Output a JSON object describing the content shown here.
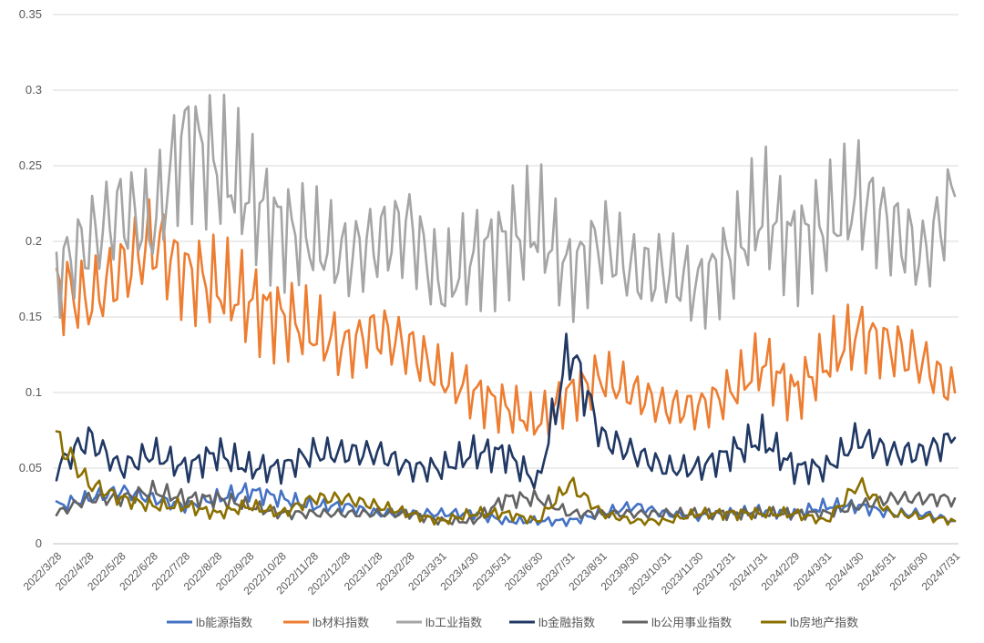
{
  "chart_data": {
    "type": "line",
    "title": "",
    "xlabel": "",
    "ylabel": "",
    "ylim": [
      0,
      0.35
    ],
    "yticks": [
      0,
      0.05,
      0.1,
      0.15,
      0.2,
      0.25,
      0.3,
      0.35
    ],
    "ytick_labels": [
      "0",
      "0.05",
      "0.1",
      "0.15",
      "0.2",
      "0.25",
      "0.3",
      "0.35"
    ],
    "grid": true,
    "legend_position": "bottom",
    "categories": [
      "2022/3/28",
      "2022/4/28",
      "2022/5/28",
      "2022/6/28",
      "2022/7/28",
      "2022/8/28",
      "2022/9/28",
      "2022/10/28",
      "2022/11/28",
      "2022/12/28",
      "2023/1/28",
      "2023/2/28",
      "2023/3/31",
      "2023/4/30",
      "2023/5/31",
      "2023/6/30",
      "2023/7/31",
      "2023/8/31",
      "2023/9/30",
      "2023/10/31",
      "2023/11/30",
      "2023/12/31",
      "2024/1/31",
      "2024/2/29",
      "2024/3/31",
      "2024/4/30",
      "2024/5/31",
      "2024/6/30",
      "2024/7/31"
    ],
    "series": [
      {
        "name": "lb能源指数",
        "color": "#4472c4",
        "values": [
          0.025,
          0.03,
          0.035,
          0.03,
          0.025,
          0.03,
          0.035,
          0.03,
          0.025,
          0.025,
          0.02,
          0.02,
          0.02,
          0.02,
          0.015,
          0.015,
          0.015,
          0.02,
          0.025,
          0.02,
          0.018,
          0.02,
          0.022,
          0.02,
          0.025,
          0.025,
          0.02,
          0.02,
          0.015
        ]
      },
      {
        "name": "lb材料指数",
        "color": "#ed7d31",
        "values": [
          0.17,
          0.16,
          0.18,
          0.2,
          0.18,
          0.17,
          0.16,
          0.15,
          0.14,
          0.13,
          0.14,
          0.13,
          0.11,
          0.1,
          0.09,
          0.08,
          0.1,
          0.11,
          0.1,
          0.09,
          0.09,
          0.1,
          0.12,
          0.1,
          0.12,
          0.14,
          0.13,
          0.12,
          0.1
        ]
      },
      {
        "name": "lb工业指数",
        "color": "#a5a5a5",
        "values": [
          0.18,
          0.2,
          0.22,
          0.21,
          0.27,
          0.25,
          0.23,
          0.21,
          0.2,
          0.19,
          0.2,
          0.21,
          0.17,
          0.19,
          0.2,
          0.21,
          0.18,
          0.2,
          0.18,
          0.18,
          0.17,
          0.19,
          0.22,
          0.2,
          0.21,
          0.23,
          0.21,
          0.19,
          0.23
        ]
      },
      {
        "name": "lb金融指数",
        "color": "#203864",
        "values": [
          0.05,
          0.07,
          0.05,
          0.06,
          0.05,
          0.06,
          0.05,
          0.05,
          0.06,
          0.06,
          0.06,
          0.05,
          0.05,
          0.06,
          0.06,
          0.04,
          0.13,
          0.07,
          0.06,
          0.05,
          0.05,
          0.06,
          0.07,
          0.05,
          0.05,
          0.07,
          0.06,
          0.06,
          0.07
        ]
      },
      {
        "name": "lb公用事业指数",
        "color": "#636363",
        "values": [
          0.02,
          0.03,
          0.03,
          0.035,
          0.03,
          0.03,
          0.025,
          0.02,
          0.02,
          0.02,
          0.02,
          0.02,
          0.015,
          0.015,
          0.03,
          0.03,
          0.02,
          0.02,
          0.02,
          0.02,
          0.02,
          0.02,
          0.02,
          0.02,
          0.02,
          0.025,
          0.03,
          0.03,
          0.03
        ]
      },
      {
        "name": "lb房地产指数",
        "color": "#8b7000",
        "values": [
          0.07,
          0.04,
          0.03,
          0.025,
          0.025,
          0.02,
          0.025,
          0.02,
          0.03,
          0.03,
          0.025,
          0.02,
          0.015,
          0.02,
          0.02,
          0.015,
          0.04,
          0.02,
          0.015,
          0.015,
          0.02,
          0.02,
          0.02,
          0.02,
          0.015,
          0.04,
          0.02,
          0.018,
          0.015
        ]
      }
    ]
  }
}
